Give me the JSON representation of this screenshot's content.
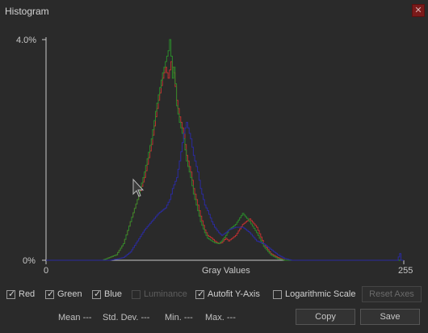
{
  "window": {
    "title": "Histogram",
    "close_icon": "close-icon"
  },
  "chart_data": {
    "type": "line",
    "xlabel": "Gray Values",
    "ylabel": "",
    "xlim": [
      0,
      255
    ],
    "ylim": [
      0,
      4.0
    ],
    "y_unit": "%",
    "x_tick_labels": [
      "0",
      "255"
    ],
    "y_tick_labels": [
      "4.0%",
      "0%"
    ],
    "grid": false,
    "series": [
      {
        "color": "#c03030",
        "x": [
          0,
          40,
          45,
          50,
          55,
          60,
          65,
          70,
          75,
          78,
          80,
          83,
          85,
          87,
          89,
          90,
          91,
          93,
          95,
          98,
          100,
          103,
          105,
          108,
          110,
          113,
          115,
          118,
          120,
          123,
          125,
          128,
          130,
          135,
          140,
          145,
          150,
          155,
          160,
          165,
          170,
          175,
          180,
          190,
          255
        ],
        "values": [
          0,
          0,
          0.05,
          0.1,
          0.3,
          0.7,
          1.1,
          1.5,
          2.1,
          2.6,
          2.9,
          3.3,
          3.5,
          3.3,
          3.6,
          3.5,
          3.4,
          2.9,
          2.6,
          2.3,
          1.9,
          1.6,
          1.3,
          1.0,
          0.8,
          0.55,
          0.45,
          0.4,
          0.35,
          0.3,
          0.32,
          0.4,
          0.35,
          0.45,
          0.65,
          0.75,
          0.6,
          0.3,
          0.12,
          0.05,
          0,
          0,
          0,
          0,
          0
        ]
      },
      {
        "color": "#2a8a2a",
        "x": [
          0,
          40,
          45,
          50,
          55,
          60,
          65,
          70,
          75,
          78,
          80,
          83,
          85,
          87,
          88,
          89,
          90,
          91,
          92,
          93,
          95,
          98,
          100,
          103,
          105,
          108,
          110,
          113,
          115,
          118,
          120,
          123,
          125,
          128,
          130,
          135,
          140,
          145,
          150,
          155,
          160,
          165,
          170,
          175,
          255
        ],
        "values": [
          0,
          0,
          0.05,
          0.1,
          0.3,
          0.7,
          1.1,
          1.6,
          2.2,
          2.7,
          3.0,
          3.4,
          3.6,
          3.8,
          4.0,
          3.7,
          3.3,
          3.5,
          3.2,
          2.8,
          2.5,
          2.2,
          1.8,
          1.5,
          1.2,
          0.9,
          0.7,
          0.5,
          0.4,
          0.35,
          0.32,
          0.3,
          0.35,
          0.45,
          0.55,
          0.65,
          0.85,
          0.7,
          0.5,
          0.25,
          0.1,
          0.03,
          0,
          0,
          0
        ]
      },
      {
        "color": "#2a2aa0",
        "x": [
          0,
          45,
          50,
          55,
          60,
          65,
          70,
          75,
          80,
          85,
          88,
          90,
          93,
          95,
          98,
          100,
          103,
          105,
          108,
          110,
          113,
          115,
          118,
          120,
          123,
          125,
          128,
          130,
          135,
          140,
          145,
          150,
          155,
          160,
          165,
          170,
          175,
          180,
          185,
          190,
          195,
          250,
          252,
          253,
          255
        ],
        "values": [
          0,
          0,
          0.02,
          0.05,
          0.15,
          0.35,
          0.55,
          0.7,
          0.85,
          0.95,
          1.1,
          1.3,
          1.5,
          1.8,
          2.3,
          2.5,
          2.2,
          1.9,
          1.6,
          1.3,
          1.0,
          0.9,
          0.7,
          0.6,
          0.5,
          0.45,
          0.5,
          0.55,
          0.6,
          0.6,
          0.5,
          0.35,
          0.3,
          0.2,
          0.1,
          0.03,
          0,
          0,
          0,
          0,
          0,
          0,
          0.12,
          0,
          0
        ]
      }
    ]
  },
  "controls": {
    "red": {
      "label": "Red",
      "checked": true
    },
    "green": {
      "label": "Green",
      "checked": true
    },
    "blue": {
      "label": "Blue",
      "checked": true
    },
    "luminance": {
      "label": "Luminance",
      "checked": false,
      "enabled": false
    },
    "autofit": {
      "label": "Autofit Y-Axis",
      "checked": true
    },
    "logscale": {
      "label": "Logarithmic Scale",
      "checked": false
    },
    "reset_axes": "Reset Axes"
  },
  "stats": {
    "mean": "Mean ---",
    "std_dev": "Std. Dev. ---",
    "min": "Min. ---",
    "max": "Max. ---"
  },
  "buttons": {
    "copy": "Copy",
    "save": "Save"
  },
  "colors": {
    "background": "#2a2a2a",
    "close_bg": "#7a1a1a"
  }
}
